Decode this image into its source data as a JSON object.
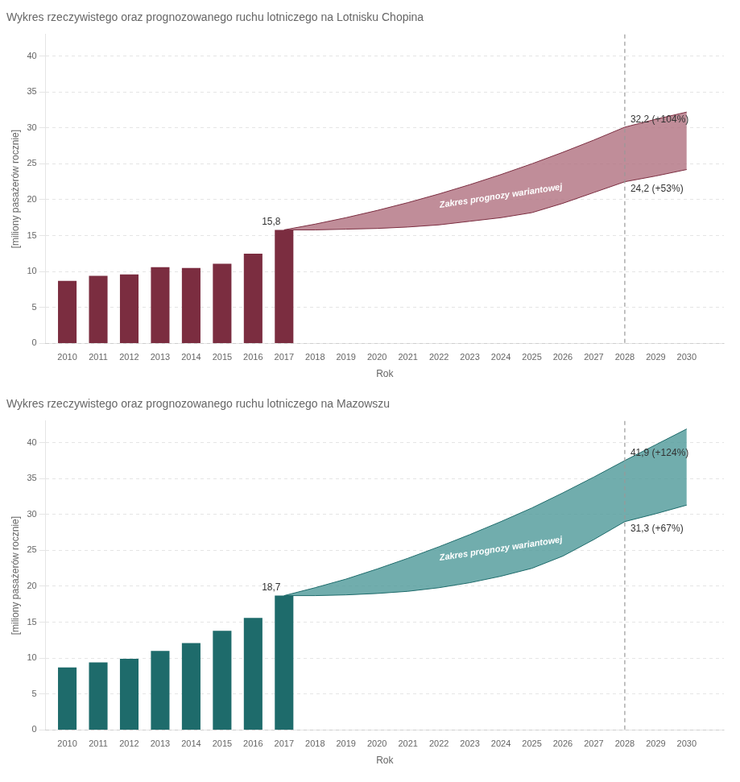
{
  "chart_data": [
    {
      "type": "bar",
      "title": "Wykres rzeczywistego oraz prognozowanego ruchu lotniczego na Lotnisku Chopina",
      "x_label": "Rok",
      "y_label": "[miliony pasażerów rocznie]",
      "xlim": [
        2009.3,
        2031.2
      ],
      "xticks": [
        2010,
        2011,
        2012,
        2013,
        2014,
        2015,
        2016,
        2017,
        2018,
        2019,
        2020,
        2021,
        2022,
        2023,
        2024,
        2025,
        2026,
        2027,
        2028,
        2029,
        2030
      ],
      "ylim": [
        0,
        43
      ],
      "yticks": [
        0,
        5,
        10,
        15,
        20,
        25,
        30,
        35,
        40
      ],
      "grid": true,
      "vline": {
        "x": 2028,
        "high_label": "32,2 (+104%)",
        "low_label": "24,2 (+53%)"
      },
      "series": [
        {
          "type": "bar",
          "color": "#7B2D40",
          "x": [
            2010,
            2011,
            2012,
            2013,
            2014,
            2015,
            2016,
            2017
          ],
          "values": [
            8.7,
            9.4,
            9.6,
            10.6,
            10.5,
            11.1,
            12.5,
            15.8
          ],
          "value_labels": [
            null,
            null,
            null,
            null,
            null,
            null,
            null,
            "15,8"
          ]
        },
        {
          "type": "band",
          "color": "#B07080",
          "x": [
            2017,
            2018,
            2019,
            2020,
            2021,
            2022,
            2023,
            2024,
            2025,
            2026,
            2027,
            2028,
            2029,
            2030
          ],
          "high": [
            15.8,
            16.6,
            17.5,
            18.5,
            19.6,
            20.8,
            22.1,
            23.5,
            25.0,
            26.6,
            28.3,
            30.1,
            31.2,
            32.2
          ],
          "low": [
            15.8,
            15.8,
            15.9,
            16.0,
            16.2,
            16.5,
            17.0,
            17.5,
            18.2,
            19.5,
            21.0,
            22.5,
            23.3,
            24.2
          ],
          "label": "Zakres prognozy wariantowej",
          "label_x": 2024
        }
      ]
    },
    {
      "type": "bar",
      "title": "Wykres rzeczywistego oraz prognozowanego ruchu lotniczego na Mazowszu",
      "x_label": "Rok",
      "y_label": "[miliony pasażerów rocznie]",
      "xlim": [
        2009.3,
        2031.2
      ],
      "xticks": [
        2010,
        2011,
        2012,
        2013,
        2014,
        2015,
        2016,
        2017,
        2018,
        2019,
        2020,
        2021,
        2022,
        2023,
        2024,
        2025,
        2026,
        2027,
        2028,
        2029,
        2030
      ],
      "ylim": [
        0,
        43
      ],
      "yticks": [
        0,
        5,
        10,
        15,
        20,
        25,
        30,
        35,
        40
      ],
      "grid": true,
      "vline": {
        "x": 2028,
        "high_label": "41,9 (+124%)",
        "low_label": "31,3 (+67%)"
      },
      "series": [
        {
          "type": "bar",
          "color": "#1E6B6B",
          "x": [
            2010,
            2011,
            2012,
            2013,
            2014,
            2015,
            2016,
            2017
          ],
          "values": [
            8.7,
            9.4,
            9.9,
            11.0,
            12.1,
            13.8,
            15.6,
            18.7
          ],
          "value_labels": [
            null,
            null,
            null,
            null,
            null,
            null,
            null,
            "18,7"
          ]
        },
        {
          "type": "band",
          "color": "#4D9999",
          "x": [
            2017,
            2018,
            2019,
            2020,
            2021,
            2022,
            2023,
            2024,
            2025,
            2026,
            2027,
            2028,
            2029,
            2030
          ],
          "high": [
            18.7,
            19.8,
            21.0,
            22.4,
            23.9,
            25.5,
            27.2,
            29.0,
            30.9,
            33.0,
            35.2,
            37.5,
            39.7,
            41.9
          ],
          "low": [
            18.7,
            18.7,
            18.8,
            19.0,
            19.3,
            19.8,
            20.5,
            21.4,
            22.5,
            24.2,
            26.5,
            29.0,
            30.1,
            31.3
          ],
          "label": "Zakres prognozy wariantowej",
          "label_x": 2024
        }
      ]
    }
  ]
}
